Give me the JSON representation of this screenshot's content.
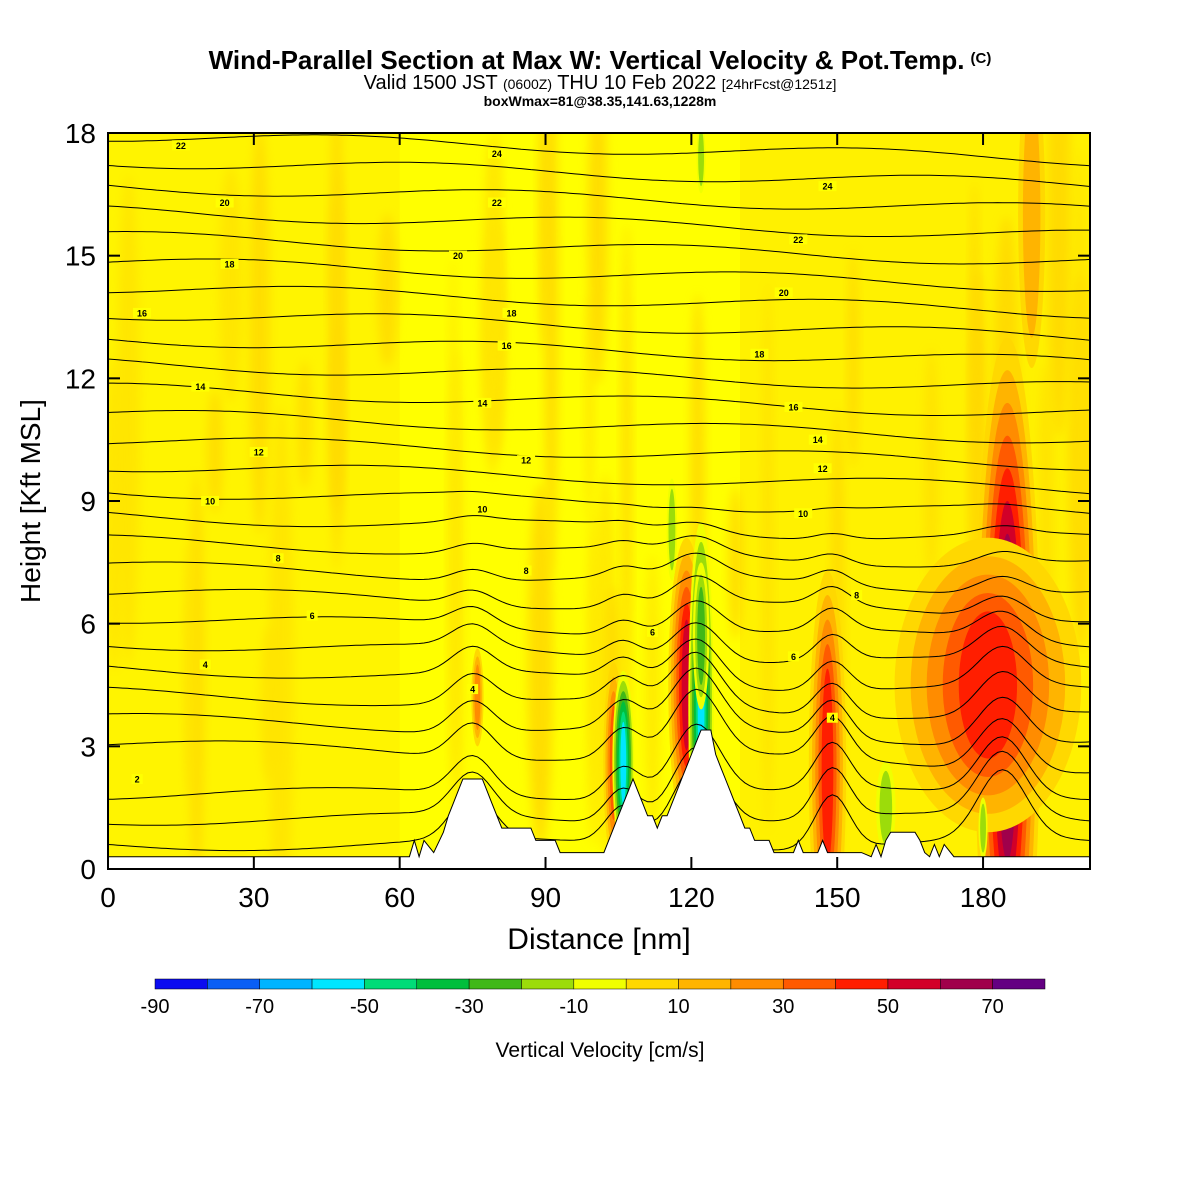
{
  "title": "Wind-Parallel Section at Max W: Vertical Velocity & Pot.Temp.",
  "title_copyright": "(C)",
  "subtitle": {
    "valid_label": "Valid 1500 JST",
    "utc": "(0600Z)",
    "date": "THU 10 Feb 2022",
    "forecast": "[24hrFcst@1251z]"
  },
  "box_info": "boxWmax=81@38.35,141.63,1228m",
  "chart_data": {
    "type": "heatmap",
    "xlabel": "Distance [nm]",
    "ylabel": "Height [Kft MSL]",
    "xlim": [
      0,
      202
    ],
    "ylim": [
      0,
      18
    ],
    "x_ticks": [
      0,
      30,
      60,
      90,
      120,
      150,
      180
    ],
    "y_ticks": [
      0,
      3,
      6,
      9,
      12,
      15,
      18
    ],
    "colorbar": {
      "label": "Vertical Velocity [cm/s]",
      "ticks": [
        -90,
        -70,
        -50,
        -30,
        -10,
        10,
        30,
        50,
        70
      ],
      "bins": [
        -90,
        -80,
        -70,
        -60,
        -50,
        -40,
        -30,
        -20,
        -10,
        0,
        10,
        20,
        30,
        40,
        50,
        60,
        70,
        80
      ],
      "colors": [
        "#0b0bf0",
        "#0a5ff5",
        "#00b4ff",
        "#00e6ff",
        "#00dc78",
        "#00be3c",
        "#40b818",
        "#9cdc0a",
        "#f0ff00",
        "#ffd800",
        "#ffb400",
        "#ff8c00",
        "#ff5a00",
        "#ff1e00",
        "#d20028",
        "#a0004b",
        "#640082"
      ]
    },
    "background_color": "#ffff00",
    "theta_contour_labels": [
      {
        "x": 6,
        "y": 2.2,
        "label": "2"
      },
      {
        "x": 20,
        "y": 5.0,
        "label": "4"
      },
      {
        "x": 42,
        "y": 6.2,
        "label": "6"
      },
      {
        "x": 35,
        "y": 7.6,
        "label": "8"
      },
      {
        "x": 21,
        "y": 9.0,
        "label": "10"
      },
      {
        "x": 31,
        "y": 10.2,
        "label": "12"
      },
      {
        "x": 19,
        "y": 11.8,
        "label": "14"
      },
      {
        "x": 7,
        "y": 13.6,
        "label": "16"
      },
      {
        "x": 25,
        "y": 14.8,
        "label": "18"
      },
      {
        "x": 24,
        "y": 16.3,
        "label": "20"
      },
      {
        "x": 15,
        "y": 17.7,
        "label": "22"
      },
      {
        "x": 75,
        "y": 4.4,
        "label": "4"
      },
      {
        "x": 112,
        "y": 5.8,
        "label": "6"
      },
      {
        "x": 86,
        "y": 7.3,
        "label": "8"
      },
      {
        "x": 77,
        "y": 8.8,
        "label": "10"
      },
      {
        "x": 86,
        "y": 10.0,
        "label": "12"
      },
      {
        "x": 77,
        "y": 11.4,
        "label": "14"
      },
      {
        "x": 82,
        "y": 12.8,
        "label": "16"
      },
      {
        "x": 83,
        "y": 13.6,
        "label": "18"
      },
      {
        "x": 72,
        "y": 15.0,
        "label": "20"
      },
      {
        "x": 80,
        "y": 16.3,
        "label": "22"
      },
      {
        "x": 80,
        "y": 17.5,
        "label": "24"
      },
      {
        "x": 149,
        "y": 3.7,
        "label": "4"
      },
      {
        "x": 141,
        "y": 5.2,
        "label": "6"
      },
      {
        "x": 154,
        "y": 6.7,
        "label": "8"
      },
      {
        "x": 143,
        "y": 8.7,
        "label": "10"
      },
      {
        "x": 147,
        "y": 9.8,
        "label": "12"
      },
      {
        "x": 146,
        "y": 10.5,
        "label": "14"
      },
      {
        "x": 141,
        "y": 11.3,
        "label": "16"
      },
      {
        "x": 134,
        "y": 12.6,
        "label": "18"
      },
      {
        "x": 139,
        "y": 14.1,
        "label": "20"
      },
      {
        "x": 142,
        "y": 15.4,
        "label": "22"
      },
      {
        "x": 148,
        "y": 16.7,
        "label": "24"
      }
    ],
    "w_features": [
      {
        "x": 185,
        "y": 4.2,
        "rx": 1.4,
        "ry": 3.2,
        "value": 75
      },
      {
        "x": 181,
        "y": 4.5,
        "rx": 6,
        "ry": 1.8,
        "value": 45
      },
      {
        "x": 148,
        "y": 2.5,
        "rx": 1.2,
        "ry": 2.4,
        "value": 50
      },
      {
        "x": 119,
        "y": 4.5,
        "rx": 1.0,
        "ry": 1.6,
        "value": 55
      },
      {
        "x": 104,
        "y": 2.6,
        "rx": 0.8,
        "ry": 1.4,
        "value": 35
      },
      {
        "x": 76,
        "y": 4.2,
        "rx": 0.6,
        "ry": 0.8,
        "value": 25
      },
      {
        "x": 122,
        "y": 4.0,
        "rx": 0.7,
        "ry": 2.0,
        "value": -55
      },
      {
        "x": 106,
        "y": 2.6,
        "rx": 0.6,
        "ry": 1.0,
        "value": -55
      },
      {
        "x": 122,
        "y": 5.7,
        "rx": 0.8,
        "ry": 1.2,
        "value": -25
      },
      {
        "x": 116,
        "y": 8.3,
        "rx": 0.7,
        "ry": 1.0,
        "value": -15
      },
      {
        "x": 122,
        "y": 17.4,
        "rx": 0.6,
        "ry": 0.7,
        "value": -15
      },
      {
        "x": 160,
        "y": 1.5,
        "rx": 1.3,
        "ry": 0.9,
        "value": -20
      },
      {
        "x": 180,
        "y": 1.0,
        "rx": 0.6,
        "ry": 0.6,
        "value": -15
      },
      {
        "x": 190,
        "y": 16.0,
        "rx": 1.8,
        "ry": 3.0,
        "value": 20
      }
    ],
    "terrain": [
      [
        0,
        0.3
      ],
      [
        62,
        0.3
      ],
      [
        63,
        0.7
      ],
      [
        64,
        0.3
      ],
      [
        65,
        0.7
      ],
      [
        67,
        0.4
      ],
      [
        69,
        0.9
      ],
      [
        70,
        1.3
      ],
      [
        71,
        1.6
      ],
      [
        72,
        1.9
      ],
      [
        73,
        2.2
      ],
      [
        75,
        2.2
      ],
      [
        77,
        2.2
      ],
      [
        78,
        1.9
      ],
      [
        79,
        1.6
      ],
      [
        80,
        1.3
      ],
      [
        81,
        1.0
      ],
      [
        84,
        1.0
      ],
      [
        87,
        1.0
      ],
      [
        88,
        0.7
      ],
      [
        90,
        0.7
      ],
      [
        92,
        0.7
      ],
      [
        93,
        0.4
      ],
      [
        96,
        0.4
      ],
      [
        97,
        0.4
      ],
      [
        99,
        0.4
      ],
      [
        101,
        0.4
      ],
      [
        102,
        0.4
      ],
      [
        103,
        0.7
      ],
      [
        104,
        1.0
      ],
      [
        105,
        1.3
      ],
      [
        106,
        1.6
      ],
      [
        107,
        1.9
      ],
      [
        108,
        2.2
      ],
      [
        109,
        1.9
      ],
      [
        110,
        1.6
      ],
      [
        111,
        1.3
      ],
      [
        112,
        1.3
      ],
      [
        113,
        1.0
      ],
      [
        114,
        1.3
      ],
      [
        115,
        1.3
      ],
      [
        116,
        1.6
      ],
      [
        117,
        1.9
      ],
      [
        118,
        2.2
      ],
      [
        119,
        2.5
      ],
      [
        120,
        2.8
      ],
      [
        121,
        3.1
      ],
      [
        122,
        3.4
      ],
      [
        124,
        3.4
      ],
      [
        125,
        2.8
      ],
      [
        126,
        2.5
      ],
      [
        127,
        2.2
      ],
      [
        128,
        1.9
      ],
      [
        129,
        1.6
      ],
      [
        130,
        1.3
      ],
      [
        131,
        1.0
      ],
      [
        132,
        1.0
      ],
      [
        133,
        0.7
      ],
      [
        135,
        0.7
      ],
      [
        136,
        0.7
      ],
      [
        137,
        0.4
      ],
      [
        140,
        0.4
      ],
      [
        141,
        0.4
      ],
      [
        142,
        0.7
      ],
      [
        143,
        0.4
      ],
      [
        146,
        0.4
      ],
      [
        147,
        0.7
      ],
      [
        148,
        0.4
      ],
      [
        150,
        0.4
      ],
      [
        155,
        0.4
      ],
      [
        157,
        0.3
      ],
      [
        158,
        0.6
      ],
      [
        159,
        0.3
      ],
      [
        160,
        0.7
      ],
      [
        161,
        0.9
      ],
      [
        166,
        0.9
      ],
      [
        167,
        0.7
      ],
      [
        168,
        0.4
      ],
      [
        169,
        0.3
      ],
      [
        170,
        0.6
      ],
      [
        171,
        0.3
      ],
      [
        172,
        0.6
      ],
      [
        174,
        0.3
      ],
      [
        183,
        0.3
      ],
      [
        202,
        0.3
      ]
    ]
  }
}
